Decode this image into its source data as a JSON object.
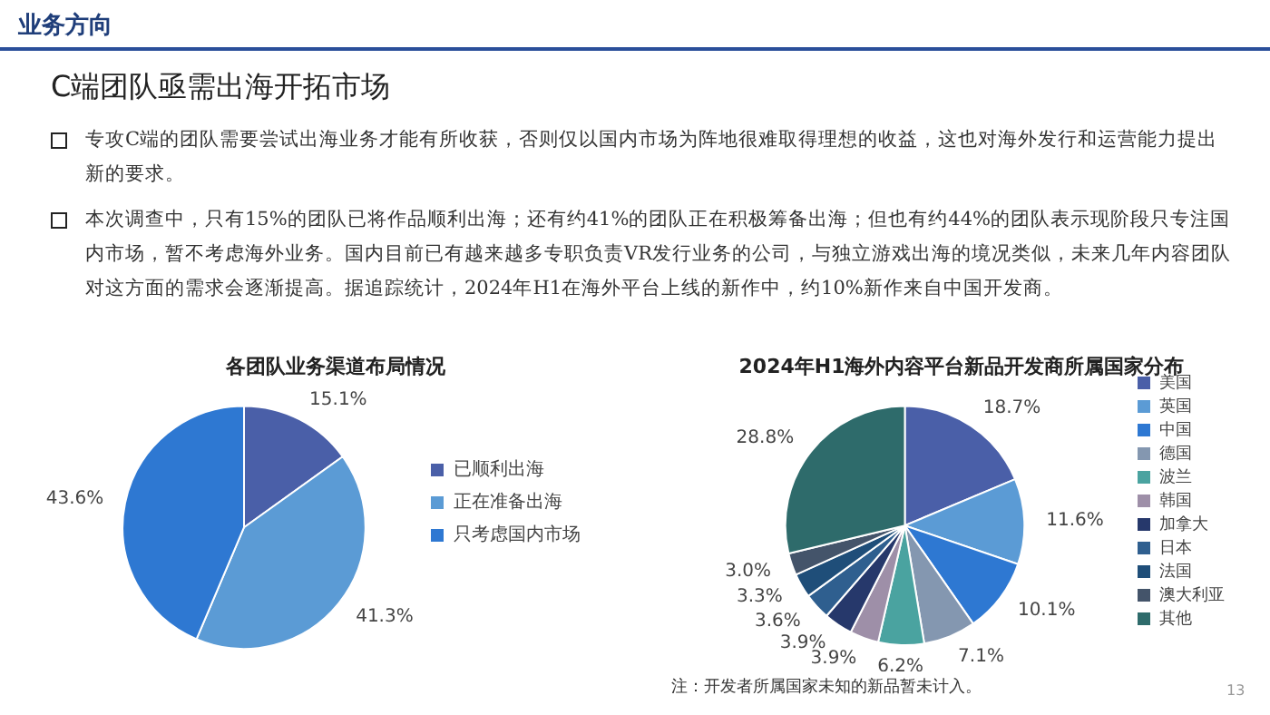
{
  "chart_data": [
    {
      "type": "pie",
      "title": "各团队业务渠道布局情况",
      "categories": [
        "已顺利出海",
        "正在准备出海",
        "只考虑国内市场"
      ],
      "values": [
        15.1,
        41.3,
        43.6
      ],
      "colors": [
        "#4a5fa8",
        "#5b9bd5",
        "#2e78d2"
      ],
      "value_labels": [
        "15.1%",
        "41.3%",
        "43.6%"
      ],
      "legend": "right",
      "annotations": [
        "业务方向",
        "C端团队亟需出海开拓市场",
        "专攻C端的团队需要尝试出海业务才能有所收获，否则仅以国内市场为阵地很难取得理想的收益，这也对海外发行和运营能力提出新的要求。",
        "本次调查中，只有15%的团队已将作品顺利出海；还有约41%的团队正在积极筹备出海；但也有约44%的团队表示现阶段只专注国内市场，暂不考虑海外业务。国内目前已有越来越多专职负责VR发行业务的公司，与独立游戏出海的境况类似，未来几年内容团队对这方面的需求会逐渐提高。据追踪统计，2024年H1在海外平台上线的新作中，约10%新作来自中国开发商。"
      ]
    },
    {
      "type": "pie",
      "title": "2024年H1海外内容平台新品开发商所属国家分布",
      "categories": [
        "美国",
        "英国",
        "中国",
        "德国",
        "波兰",
        "韩国",
        "加拿大",
        "日本",
        "法国",
        "澳大利亚",
        "其他"
      ],
      "values": [
        18.7,
        11.6,
        10.1,
        7.1,
        6.2,
        3.9,
        3.9,
        3.6,
        3.3,
        3.0,
        28.8
      ],
      "colors": [
        "#4a5fa8",
        "#5b9bd5",
        "#2e78d2",
        "#8497b0",
        "#4aa3a0",
        "#9e8fa8",
        "#26386b",
        "#2f5f8f",
        "#1f4e79",
        "#44546a",
        "#2e6b6b"
      ],
      "value_labels": [
        "18.7%",
        "11.6%",
        "10.1%",
        "7.1%",
        "6.2%",
        "3.9%",
        "3.9%",
        "3.6%",
        "3.3%",
        "3.0%",
        "28.8%"
      ],
      "legend": "right",
      "annotations": [
        "注：开发者所属国家未知的新品暂未计入。",
        "13"
      ]
    }
  ]
}
